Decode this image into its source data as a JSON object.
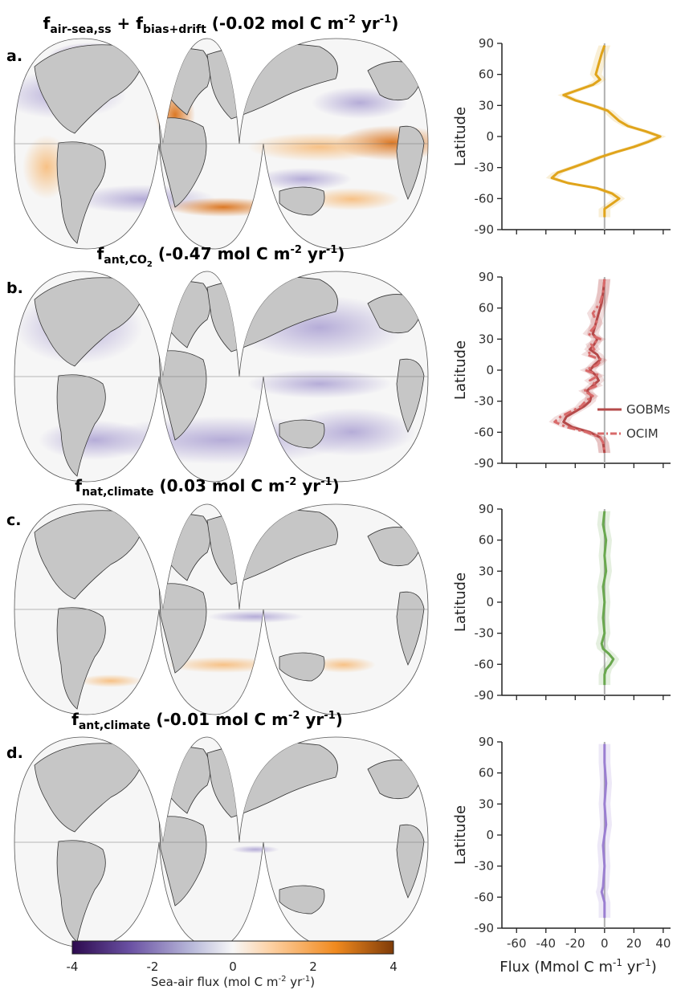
{
  "colors": {
    "land": "#c6c6c6",
    "ocean_neutral": "#f6f6f6",
    "purple_dark": "#3f1b6a",
    "orange_dark": "#7f3b08",
    "zero_line": "#b0b0b0"
  },
  "colorbar": {
    "ticks": [
      "-4",
      "-2",
      "0",
      "2",
      "4"
    ],
    "label_main": "Sea-air flux (mol C m",
    "label_exp1": "-2",
    "label_mid": " yr",
    "label_exp2": "-1",
    "label_end": ")",
    "range": [
      -4,
      4
    ]
  },
  "panels": [
    {
      "label": "a.",
      "title": {
        "f1": "f",
        "s1": "air-sea,ss",
        "plus": " + ",
        "f2": "f",
        "s2": "bias+drift",
        "value": "(-0.02 mol C m",
        "e1": "-2",
        "yr": " yr",
        "e2": "-1",
        "close": ")"
      }
    },
    {
      "label": "b.",
      "title": {
        "f1": "f",
        "s1": "ant,CO",
        "s1b": "2",
        "value": "(-0.47 mol C m",
        "e1": "-2",
        "yr": " yr",
        "e2": "-1",
        "close": ")"
      }
    },
    {
      "label": "c.",
      "title": {
        "f1": "f",
        "s1": "nat,climate",
        "value": "(0.03 mol C m",
        "e1": "-2",
        "yr": " yr",
        "e2": "-1",
        "close": ")"
      }
    },
    {
      "label": "d.",
      "title": {
        "f1": "f",
        "s1": "ant,climate",
        "value": "(-0.01 mol C m",
        "e1": "-2",
        "yr": " yr",
        "e2": "-1",
        "close": ")"
      }
    }
  ],
  "chart_data": [
    {
      "type": "line",
      "panel": "a",
      "ylabel": "Latitude",
      "ylim": [
        -90,
        90
      ],
      "xlim": [
        -70,
        45
      ],
      "yticks": [
        "90",
        "60",
        "30",
        "0",
        "-30",
        "-60",
        "-90"
      ],
      "color": "#e0a41b",
      "series": [
        {
          "lat": [
            88,
            80,
            70,
            60,
            55,
            50,
            45,
            40,
            35,
            30,
            25,
            20,
            15,
            10,
            5,
            0,
            -5,
            -10,
            -15,
            -20,
            -25,
            -30,
            -35,
            -40,
            -45,
            -50,
            -55,
            -60,
            -65,
            -70,
            -78
          ],
          "flux": [
            0,
            -2,
            -4,
            -6,
            -3,
            -8,
            -18,
            -28,
            -20,
            -8,
            2,
            6,
            10,
            16,
            28,
            38,
            30,
            20,
            8,
            -3,
            -12,
            -22,
            -32,
            -36,
            -25,
            -5,
            5,
            10,
            5,
            0,
            0
          ]
        }
      ]
    },
    {
      "type": "line",
      "panel": "b",
      "ylabel": "Latitude",
      "ylim": [
        -90,
        90
      ],
      "xlim": [
        -70,
        45
      ],
      "yticks": [
        "90",
        "60",
        "30",
        "0",
        "-30",
        "-60",
        "-90"
      ],
      "legend": [
        "GOBMs",
        "OCIM"
      ],
      "color": "#b54a4a",
      "series": [
        {
          "name": "GOBMs",
          "lat": [
            88,
            75,
            65,
            55,
            45,
            35,
            30,
            25,
            20,
            15,
            10,
            5,
            0,
            -5,
            -10,
            -15,
            -20,
            -25,
            -30,
            -35,
            -40,
            -45,
            -50,
            -55,
            -60,
            -65,
            -70,
            -80
          ],
          "flux": [
            0,
            -1,
            -2,
            -4,
            -6,
            -8,
            -5,
            -7,
            -10,
            -5,
            -3,
            -7,
            -10,
            -6,
            -4,
            -8,
            -12,
            -9,
            -10,
            -14,
            -20,
            -26,
            -28,
            -22,
            -10,
            -3,
            -1,
            0
          ]
        },
        {
          "name": "OCIM",
          "lat": [
            88,
            75,
            65,
            55,
            45,
            35,
            30,
            25,
            20,
            15,
            10,
            5,
            0,
            -5,
            -10,
            -15,
            -20,
            -25,
            -30,
            -35,
            -40,
            -45,
            -50,
            -55,
            -60,
            -65,
            -70,
            -80
          ],
          "flux": [
            0,
            -1,
            -3,
            -8,
            -5,
            -11,
            -3,
            -9,
            -7,
            -12,
            -2,
            -5,
            -13,
            -4,
            -10,
            -5,
            -14,
            -8,
            -13,
            -16,
            -23,
            -30,
            -34,
            -26,
            -12,
            -3,
            -1,
            0
          ]
        }
      ]
    },
    {
      "type": "line",
      "panel": "c",
      "ylabel": "Latitude",
      "ylim": [
        -90,
        90
      ],
      "xlim": [
        -70,
        45
      ],
      "yticks": [
        "90",
        "60",
        "30",
        "0",
        "-30",
        "-60",
        "-90"
      ],
      "color": "#6aa84f",
      "series": [
        {
          "lat": [
            88,
            75,
            60,
            45,
            30,
            15,
            0,
            -15,
            -30,
            -40,
            -45,
            -50,
            -55,
            -60,
            -65,
            -70,
            -80
          ],
          "flux": [
            0,
            -1,
            1,
            0,
            1,
            -1,
            0,
            -1,
            0,
            -2,
            -1,
            3,
            6,
            4,
            1,
            0,
            0
          ]
        }
      ]
    },
    {
      "type": "line",
      "panel": "d",
      "ylabel": "Latitude",
      "ylim": [
        -90,
        90
      ],
      "xlim": [
        -70,
        45
      ],
      "yticks": [
        "90",
        "60",
        "30",
        "0",
        "-30",
        "-60",
        "-90"
      ],
      "xticks": [
        "-60",
        "-40",
        "-20",
        "0",
        "20",
        "40"
      ],
      "xlabel_main": "Flux (Mmol C m",
      "xlabel_exp": "-1",
      "xlabel_mid": " yr",
      "xlabel_exp2": "-1",
      "xlabel_end": ")",
      "color": "#9b7fd1",
      "series": [
        {
          "lat": [
            88,
            70,
            50,
            30,
            10,
            0,
            -10,
            -30,
            -50,
            -55,
            -60,
            -65,
            -70,
            -80
          ],
          "flux": [
            0,
            0,
            1,
            0,
            1,
            0,
            -1,
            0,
            -1,
            -2,
            -1,
            0,
            0,
            0
          ]
        }
      ]
    }
  ]
}
